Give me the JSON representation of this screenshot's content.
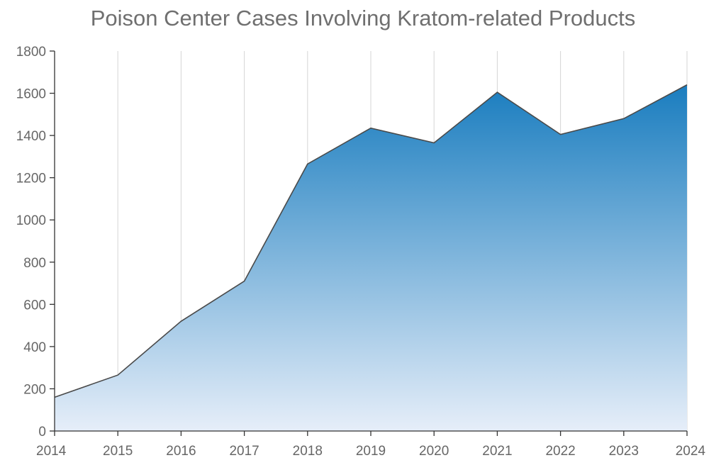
{
  "chart_data": {
    "type": "area",
    "title": "Poison Center Cases Involving Kratom-related Products",
    "xlabel": "",
    "ylabel": "",
    "x": [
      "2014",
      "2015",
      "2016",
      "2017",
      "2018",
      "2019",
      "2020",
      "2021",
      "2022",
      "2023",
      "2024"
    ],
    "series": [
      {
        "values": [
          160,
          265,
          520,
          710,
          1265,
          1435,
          1365,
          1605,
          1405,
          1480,
          1640
        ]
      }
    ],
    "ylim": [
      0,
      1800
    ],
    "yticks": [
      "0",
      "200",
      "400",
      "600",
      "800",
      "1000",
      "1200",
      "1400",
      "1600",
      "1800"
    ],
    "grid": {
      "vertical": true,
      "horizontal": false
    },
    "legend": "none",
    "colors": {
      "area_top": "#1a7dbf",
      "area_bottom": "#e6eef9",
      "line": "#4a4a4a",
      "grid": "#d5d5d5",
      "axis": "#333333",
      "text": "#666666"
    }
  }
}
